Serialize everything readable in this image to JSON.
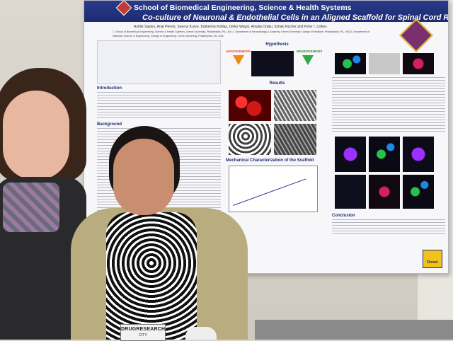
{
  "poster": {
    "school_title": "School of Biomedical Engineering, Science & Health Systems",
    "main_title": "Co-culture of Neuronal & Endothelial Cells in an Aligned Scaffold for Spinal Cord Repair",
    "authors": "Ashlie Sayles, Anat Perets, Seema Kurve, Katherine Kollias, Ulrike Wegst, Amalia Oraku, Itzhak Fischer and Peter I. Lelkes",
    "affiliation_1": "1. School of Biomedical Engineering, Science & Health Systems, Drexel University, Philadelphia, PA, USA 2. Department of Neurobiology & Anatomy, Drexel University College of Medicine, Philadelphia, PA, USA 3. Department of",
    "affiliation_2": "Materials Science & Engineering, College of Engineering, Drexel University, Philadelphia, PA, USA",
    "sections": {
      "introduction": "Introduction",
      "background": "Background",
      "hypothesis": "Hypothesis",
      "results": "Results",
      "mechanical": "Mechanical Characterization of the Scaffold",
      "conclusion": "Conclusion"
    },
    "labels": {
      "angiogenesis": "ANGIOGENESIS",
      "neurogenesis": "NEUROGENESIS"
    },
    "drexel": "Drexel"
  },
  "badge": {
    "line1": "DRUGRESEARCH",
    "line2": "CITY"
  }
}
